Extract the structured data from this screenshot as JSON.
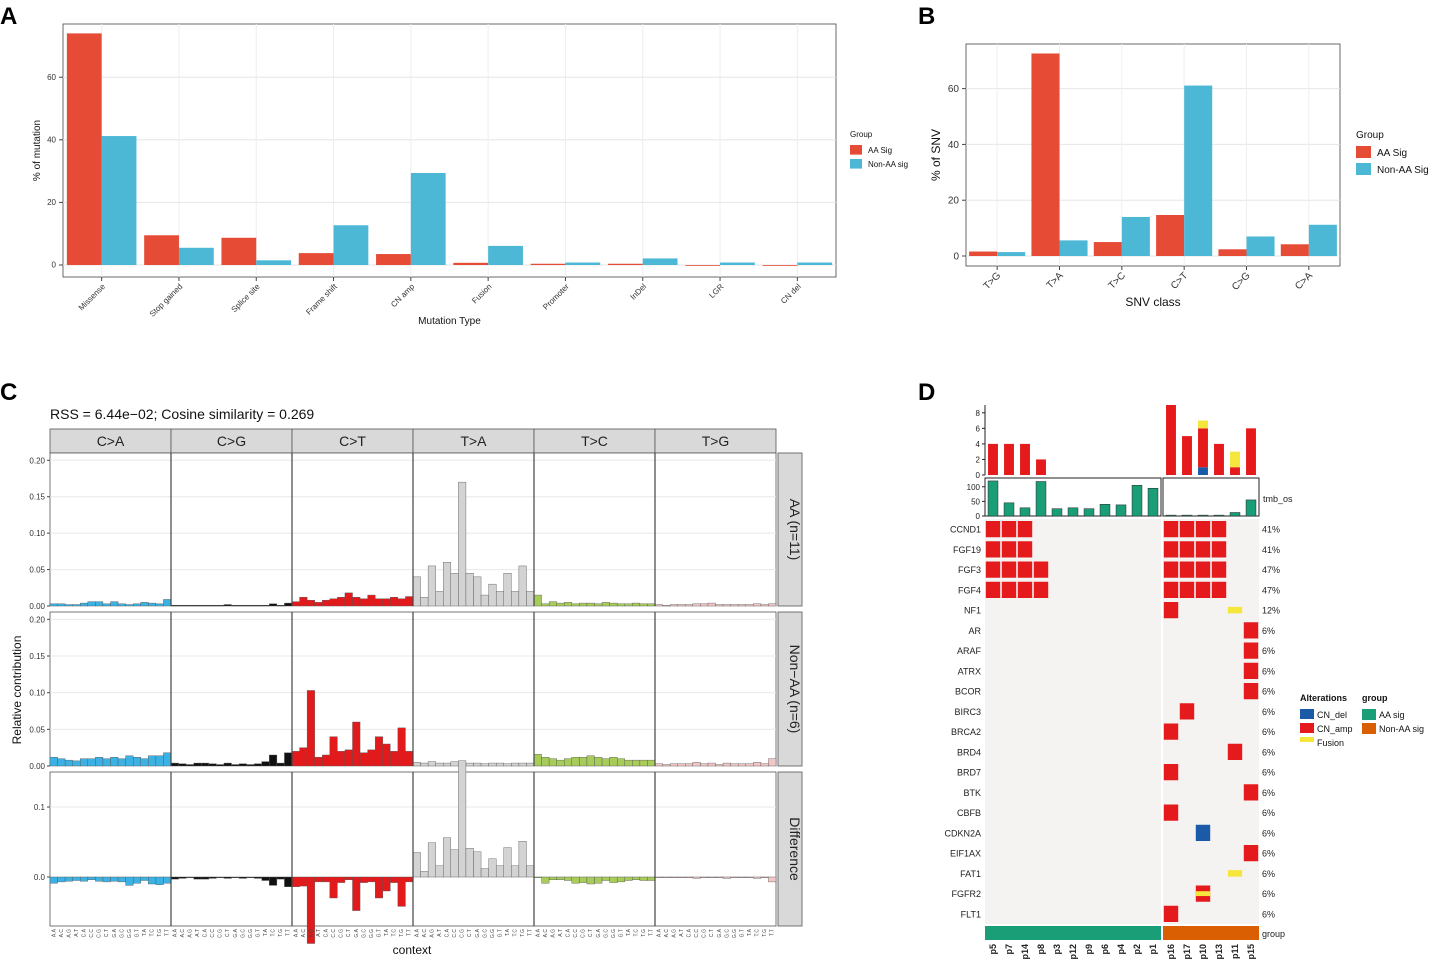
{
  "colors": {
    "red": "#e64b35",
    "blue": "#4db8d6",
    "onco_red": "#e41a1c",
    "onco_blue": "#1a5aa6",
    "onco_yellow": "#f5e63c",
    "aa_green": "#1a9e77",
    "nonaa_orange": "#d95f02",
    "tile_bg": "#f5f2f2",
    "strip_bg": "#d9d9d9",
    "ta_grey": "#d3d3d3",
    "tc_green": "#a8cc5a",
    "tg_pink": "#f3c6c6",
    "cg_black": "#111111",
    "ca_blue": "#3bb2e3",
    "ct_red": "#e31a1c"
  },
  "chart_data": [
    {
      "panel": "A",
      "type": "bar",
      "categories": [
        "Missense",
        "Stop gained",
        "Splice site",
        "Frame shift",
        "CN amp",
        "Fusion",
        "Promoter",
        "InDel",
        "LGR",
        "CN del"
      ],
      "series": [
        {
          "name": "AA Sig",
          "values": [
            74,
            9.5,
            8.7,
            3.8,
            3.5,
            0.7,
            0.4,
            0.4,
            0,
            0
          ]
        },
        {
          "name": "Non-AA sig",
          "values": [
            41.2,
            5.5,
            1.5,
            12.7,
            29.4,
            6.1,
            0.8,
            2.1,
            0.8,
            0.8
          ]
        }
      ],
      "ylabel": "% of mutation",
      "xlabel": "Mutation Type",
      "ylim": [
        0,
        77
      ],
      "yticks": [
        0,
        20,
        40,
        60
      ],
      "legend_title": "Group",
      "legend_labels": [
        "AA Sig",
        "Non-AA sig"
      ]
    },
    {
      "panel": "B",
      "type": "bar",
      "categories": [
        "T>G",
        "T>A",
        "T>C",
        "C>T",
        "C>G",
        "C>A"
      ],
      "series": [
        {
          "name": "AA Sig",
          "values": [
            1.6,
            72.6,
            5,
            14.7,
            2.4,
            4.2
          ]
        },
        {
          "name": "Non-AA Sig",
          "values": [
            1.4,
            5.6,
            14,
            61.1,
            7,
            11.2
          ]
        }
      ],
      "ylabel": "% of SNV",
      "xlabel": "SNV class",
      "ylim": [
        0,
        76
      ],
      "yticks": [
        0,
        20,
        40,
        60
      ],
      "legend_title": "Group",
      "legend_labels": [
        "AA Sig",
        "Non-AA Sig"
      ]
    },
    {
      "panel": "C",
      "type": "bar",
      "title": "RSS = 6.44e−02; Cosine similarity = 0.269",
      "substitutions": [
        "C>A",
        "C>G",
        "C>T",
        "T>A",
        "T>C",
        "T>G"
      ],
      "row_labels": [
        "AA (n=11)",
        "Non−AA (n=6)",
        "Difference"
      ],
      "ylabel": "Relative contribution",
      "xlabel": "context",
      "contexts": [
        "A.A",
        "A.C",
        "A.G",
        "A.T",
        "C.A",
        "C.C",
        "C.G",
        "C.T",
        "G.A",
        "G.C",
        "G.G",
        "G.T",
        "T.A",
        "T.C",
        "T.G",
        "T.T"
      ],
      "row_yticks": [
        [
          "0.00",
          "0.05",
          "0.10",
          "0.15",
          "0.20"
        ],
        [
          "0.00",
          "0.05",
          "0.10",
          "0.15",
          "0.20"
        ],
        [
          "0.0",
          "0.1"
        ]
      ],
      "row_ylims": [
        [
          0,
          0.21
        ],
        [
          0,
          0.21
        ],
        [
          -0.07,
          0.15
        ]
      ],
      "profiles": {
        "AA": [
          [
            0.003,
            0.003,
            0.002,
            0.002,
            0.004,
            0.006,
            0.006,
            0.003,
            0.006,
            0.003,
            0.002,
            0.003,
            0.005,
            0.004,
            0.003,
            0.009
          ],
          [
            0.001,
            0.001,
            0.001,
            0.001,
            0.001,
            0.001,
            0.001,
            0.002,
            0.001,
            0.001,
            0.001,
            0.001,
            0.001,
            0.003,
            0.001,
            0.004
          ],
          [
            0.006,
            0.012,
            0.008,
            0.005,
            0.008,
            0.01,
            0.012,
            0.018,
            0.012,
            0.01,
            0.015,
            0.01,
            0.01,
            0.012,
            0.01,
            0.013
          ],
          [
            0.04,
            0.012,
            0.055,
            0.02,
            0.06,
            0.045,
            0.17,
            0.045,
            0.04,
            0.015,
            0.03,
            0.02,
            0.045,
            0.02,
            0.055,
            0.02
          ],
          [
            0.015,
            0.003,
            0.006,
            0.004,
            0.005,
            0.003,
            0.004,
            0.004,
            0.003,
            0.005,
            0.004,
            0.003,
            0.003,
            0.004,
            0.003,
            0.003
          ],
          [
            0.002,
            0.001,
            0.002,
            0.002,
            0.002,
            0.003,
            0.003,
            0.004,
            0.002,
            0.002,
            0.002,
            0.002,
            0.002,
            0.003,
            0.002,
            0.003
          ]
        ],
        "NonAA": [
          [
            0.012,
            0.01,
            0.008,
            0.007,
            0.01,
            0.01,
            0.012,
            0.01,
            0.012,
            0.01,
            0.014,
            0.012,
            0.01,
            0.014,
            0.014,
            0.018
          ],
          [
            0.004,
            0.003,
            0.002,
            0.004,
            0.004,
            0.003,
            0.002,
            0.004,
            0.002,
            0.003,
            0.002,
            0.003,
            0.006,
            0.015,
            0.004,
            0.018
          ],
          [
            0.02,
            0.025,
            0.103,
            0.012,
            0.015,
            0.04,
            0.02,
            0.022,
            0.06,
            0.018,
            0.022,
            0.04,
            0.03,
            0.02,
            0.052,
            0.02
          ],
          [
            0.005,
            0.004,
            0.006,
            0.004,
            0.004,
            0.006,
            0.004,
            0.004,
            0.004,
            0.003,
            0.004,
            0.004,
            0.003,
            0.004,
            0.004,
            0.004
          ],
          [
            0.016,
            0.012,
            0.01,
            0.008,
            0.01,
            0.012,
            0.012,
            0.014,
            0.012,
            0.01,
            0.012,
            0.01,
            0.008,
            0.008,
            0.008,
            0.008
          ],
          [
            0.003,
            0.002,
            0.003,
            0.003,
            0.003,
            0.005,
            0.003,
            0.004,
            0.002,
            0.004,
            0.003,
            0.003,
            0.003,
            0.005,
            0.003,
            0.01
          ]
        ],
        "Diff": [
          [
            -0.009,
            -0.007,
            -0.006,
            -0.005,
            -0.006,
            -0.004,
            -0.006,
            -0.007,
            -0.006,
            -0.007,
            -0.012,
            -0.009,
            -0.005,
            -0.01,
            -0.011,
            -0.009
          ],
          [
            -0.003,
            -0.002,
            -0.001,
            -0.003,
            -0.003,
            -0.002,
            -0.001,
            -0.002,
            -0.001,
            -0.002,
            -0.001,
            -0.002,
            -0.005,
            -0.012,
            -0.003,
            -0.014
          ],
          [
            -0.014,
            -0.013,
            -0.095,
            -0.007,
            -0.007,
            -0.03,
            -0.008,
            -0.004,
            -0.048,
            -0.008,
            -0.007,
            -0.03,
            -0.02,
            -0.008,
            -0.042,
            -0.007
          ],
          [
            0.035,
            0.008,
            0.049,
            0.016,
            0.056,
            0.039,
            0.166,
            0.041,
            0.036,
            0.012,
            0.026,
            0.016,
            0.042,
            0.016,
            0.051,
            0.016
          ],
          [
            -0.001,
            -0.009,
            -0.004,
            -0.004,
            -0.005,
            -0.009,
            -0.008,
            -0.01,
            -0.009,
            -0.005,
            -0.008,
            -0.007,
            -0.005,
            -0.004,
            -0.005,
            -0.005
          ],
          [
            -0.001,
            -0.001,
            -0.001,
            -0.001,
            -0.001,
            -0.002,
            0.0,
            0.0,
            0.0,
            -0.002,
            0.0,
            -0.001,
            -0.001,
            -0.002,
            -0.001,
            -0.007
          ]
        ]
      }
    },
    {
      "panel": "D",
      "type": "heatmap",
      "samples": [
        "p5",
        "p7",
        "p14",
        "p8",
        "p3",
        "p12",
        "p9",
        "p6",
        "p4",
        "p2",
        "p1",
        "p16",
        "p17",
        "p10",
        "p13",
        "p11",
        "p15"
      ],
      "sample_groups": [
        "AA sig",
        "AA sig",
        "AA sig",
        "AA sig",
        "AA sig",
        "AA sig",
        "AA sig",
        "AA sig",
        "AA sig",
        "AA sig",
        "AA sig",
        "Non-AA sig",
        "Non-AA sig",
        "Non-AA sig",
        "Non-AA sig",
        "Non-AA sig",
        "Non-AA sig"
      ],
      "alt_count_yticks": [
        "0",
        "2",
        "4",
        "6",
        "8"
      ],
      "alt_counts_amp": [
        4,
        4,
        4,
        2,
        0,
        0,
        0,
        0,
        0,
        0,
        0,
        9,
        5,
        5,
        4,
        1,
        6
      ],
      "alt_counts_del": [
        0,
        0,
        0,
        0,
        0,
        0,
        0,
        0,
        0,
        0,
        0,
        0,
        0,
        1,
        0,
        0,
        0
      ],
      "alt_counts_fus": [
        0,
        0,
        0,
        0,
        0,
        0,
        0,
        0,
        0,
        0,
        0,
        0,
        0,
        1,
        0,
        2,
        0
      ],
      "tmb_label": "tmb_os",
      "tmb_yticks": [
        "0",
        "50",
        "100"
      ],
      "tmb_values": [
        120,
        45,
        28,
        118,
        25,
        28,
        25,
        40,
        38,
        105,
        95,
        3,
        3,
        3,
        3,
        12,
        55
      ],
      "genes": [
        "CCND1",
        "FGF19",
        "FGF3",
        "FGF4",
        "NF1",
        "AR",
        "ARAF",
        "ATRX",
        "BCOR",
        "BIRC3",
        "BRCA2",
        "BRD4",
        "BRD7",
        "BTK",
        "CBFB",
        "CDKN2A",
        "EIF1AX",
        "FAT1",
        "FGFR2",
        "FLT1"
      ],
      "gene_pcts": [
        "41%",
        "41%",
        "47%",
        "47%",
        "12%",
        "6%",
        "6%",
        "6%",
        "6%",
        "6%",
        "6%",
        "6%",
        "6%",
        "6%",
        "6%",
        "6%",
        "6%",
        "6%",
        "6%",
        "6%"
      ],
      "alterations": [
        {
          "gene": "CCND1",
          "samples": [
            "p5",
            "p7",
            "p14",
            "p16",
            "p17",
            "p10",
            "p13"
          ],
          "type": "CN_amp"
        },
        {
          "gene": "FGF19",
          "samples": [
            "p5",
            "p7",
            "p14",
            "p16",
            "p17",
            "p10",
            "p13"
          ],
          "type": "CN_amp"
        },
        {
          "gene": "FGF3",
          "samples": [
            "p5",
            "p7",
            "p14",
            "p8",
            "p16",
            "p17",
            "p10",
            "p13"
          ],
          "type": "CN_amp"
        },
        {
          "gene": "FGF4",
          "samples": [
            "p5",
            "p7",
            "p14",
            "p8",
            "p16",
            "p17",
            "p10",
            "p13"
          ],
          "type": "CN_amp"
        },
        {
          "gene": "NF1",
          "samples": [
            "p16"
          ],
          "type": "CN_amp"
        },
        {
          "gene": "NF1",
          "samples": [
            "p11"
          ],
          "type": "Fusion"
        },
        {
          "gene": "AR",
          "samples": [
            "p15"
          ],
          "type": "CN_amp"
        },
        {
          "gene": "ARAF",
          "samples": [
            "p15"
          ],
          "type": "CN_amp"
        },
        {
          "gene": "ATRX",
          "samples": [
            "p15"
          ],
          "type": "CN_amp"
        },
        {
          "gene": "BCOR",
          "samples": [
            "p15"
          ],
          "type": "CN_amp"
        },
        {
          "gene": "BIRC3",
          "samples": [
            "p17"
          ],
          "type": "CN_amp"
        },
        {
          "gene": "BRCA2",
          "samples": [
            "p16"
          ],
          "type": "CN_amp"
        },
        {
          "gene": "BRD4",
          "samples": [
            "p11"
          ],
          "type": "CN_amp"
        },
        {
          "gene": "BRD7",
          "samples": [
            "p16"
          ],
          "type": "CN_amp"
        },
        {
          "gene": "BTK",
          "samples": [
            "p15"
          ],
          "type": "CN_amp"
        },
        {
          "gene": "CBFB",
          "samples": [
            "p16"
          ],
          "type": "CN_amp"
        },
        {
          "gene": "CDKN2A",
          "samples": [
            "p10"
          ],
          "type": "CN_del"
        },
        {
          "gene": "EIF1AX",
          "samples": [
            "p15"
          ],
          "type": "CN_amp"
        },
        {
          "gene": "FAT1",
          "samples": [
            "p11"
          ],
          "type": "Fusion"
        },
        {
          "gene": "FGFR2",
          "samples": [
            "p10"
          ],
          "type": "CN_amp+Fusion"
        },
        {
          "gene": "FLT1",
          "samples": [
            "p16"
          ],
          "type": "CN_amp"
        }
      ],
      "legend_alterations_title": "Alterations",
      "legend_alterations": [
        "CN_del",
        "CN_amp",
        "Fusion"
      ],
      "legend_group_title": "group",
      "legend_groups": [
        "AA sig",
        "Non-AA sig"
      ],
      "group_row_label": "group"
    }
  ],
  "panel_labels": [
    "A",
    "B",
    "C",
    "D"
  ]
}
